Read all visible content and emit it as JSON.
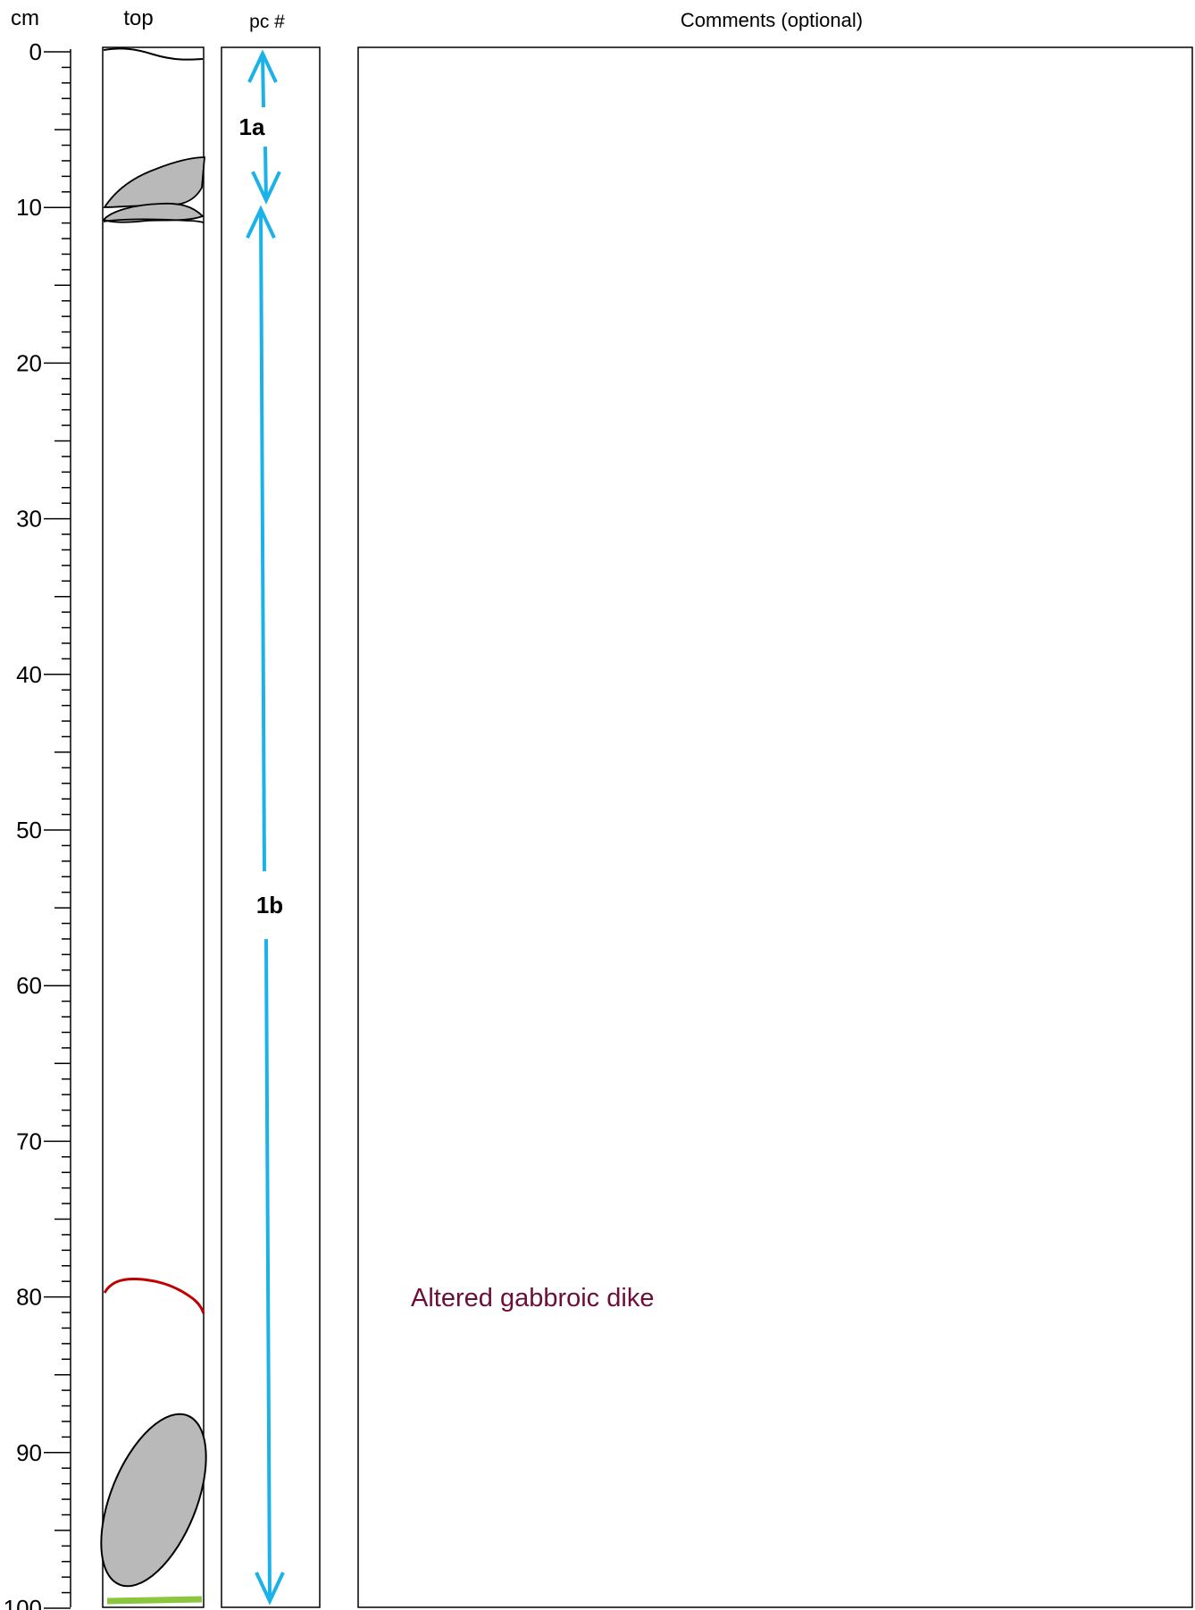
{
  "headers": {
    "scale": "cm",
    "top": "top",
    "piece": "pc #",
    "comments": "Comments (optional)"
  },
  "scale": {
    "min_cm": 0,
    "max_cm": 100,
    "major_step_cm": 10,
    "minor_step_cm": 1,
    "labels": [
      "0",
      "10",
      "20",
      "30",
      "40",
      "50",
      "60",
      "70",
      "80",
      "90",
      "100"
    ]
  },
  "pieces": [
    {
      "label": "1a",
      "top_cm": 0,
      "bottom_cm": 10
    },
    {
      "label": "1b",
      "top_cm": 10,
      "bottom_cm": 100
    }
  ],
  "comments": [
    {
      "text": "Altered gabbroic dike",
      "at_cm": 80.5,
      "color": "#6b0f3a"
    }
  ],
  "colors": {
    "outline": "#000000",
    "clast_fill": "#b9b9b9",
    "piece_arrow": "#1ab2e8",
    "vein_red": "#c00000",
    "vein_green": "#8cc63f",
    "comment_text": "#6b0f3a"
  }
}
